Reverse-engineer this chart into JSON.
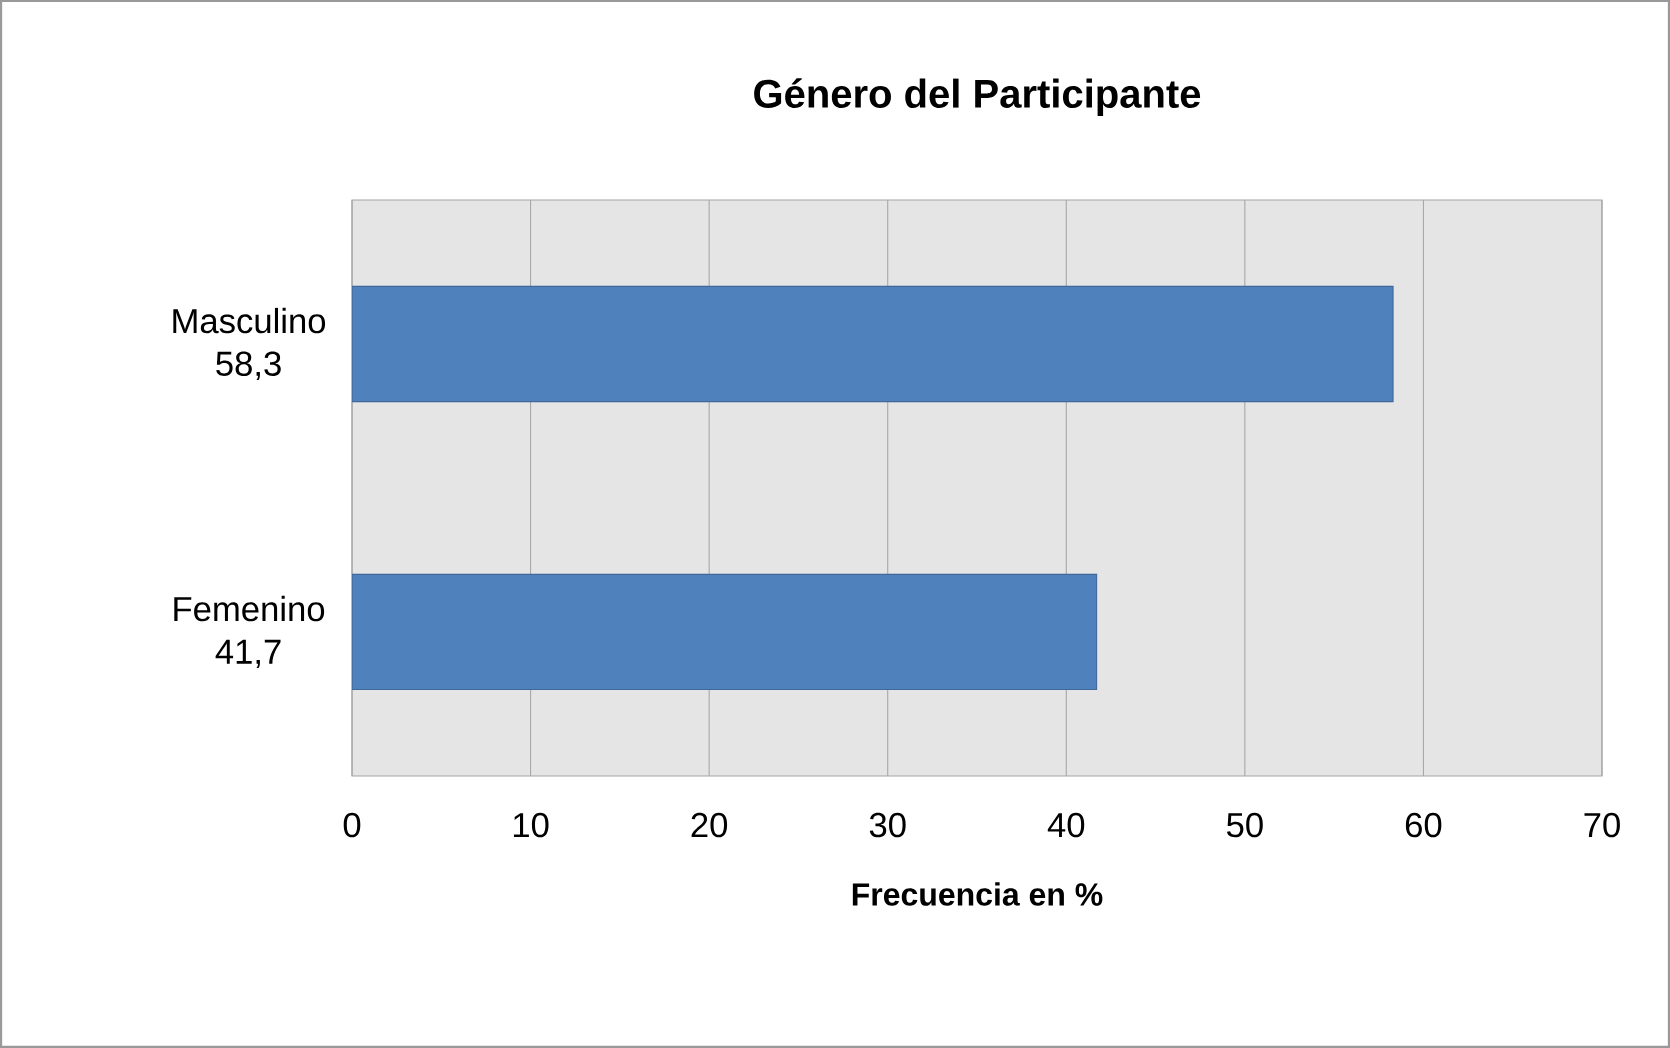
{
  "chart_data": {
    "type": "bar",
    "orientation": "horizontal",
    "title": "Género del Participante",
    "xlabel": "Frecuencia en %",
    "categories": [
      "Masculino 58,3",
      "Femenino 41,7"
    ],
    "values": [
      58.3,
      41.7
    ],
    "color": "#4f81bd",
    "xlim": [
      0,
      70
    ],
    "xticks": [
      0,
      10,
      20,
      30,
      40,
      50,
      60,
      70
    ],
    "grid": "x"
  }
}
